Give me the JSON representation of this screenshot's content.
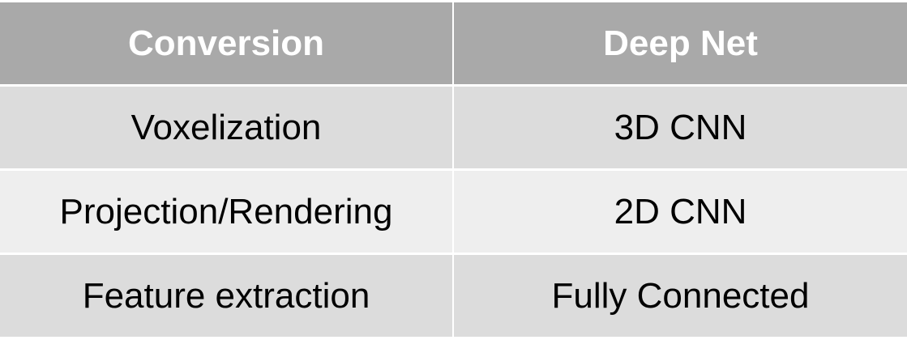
{
  "table": {
    "headers": [
      "Conversion",
      "Deep Net"
    ],
    "rows": [
      [
        "Voxelization",
        "3D CNN"
      ],
      [
        "Projection/Rendering",
        "2D CNN"
      ],
      [
        "Feature extraction",
        "Fully Connected"
      ]
    ]
  },
  "colors": {
    "header_bg": "#a9a9a9",
    "header_text": "#ffffff",
    "row_odd_bg": "#dcdcdc",
    "row_even_bg": "#eeeeee",
    "cell_text": "#000000"
  }
}
